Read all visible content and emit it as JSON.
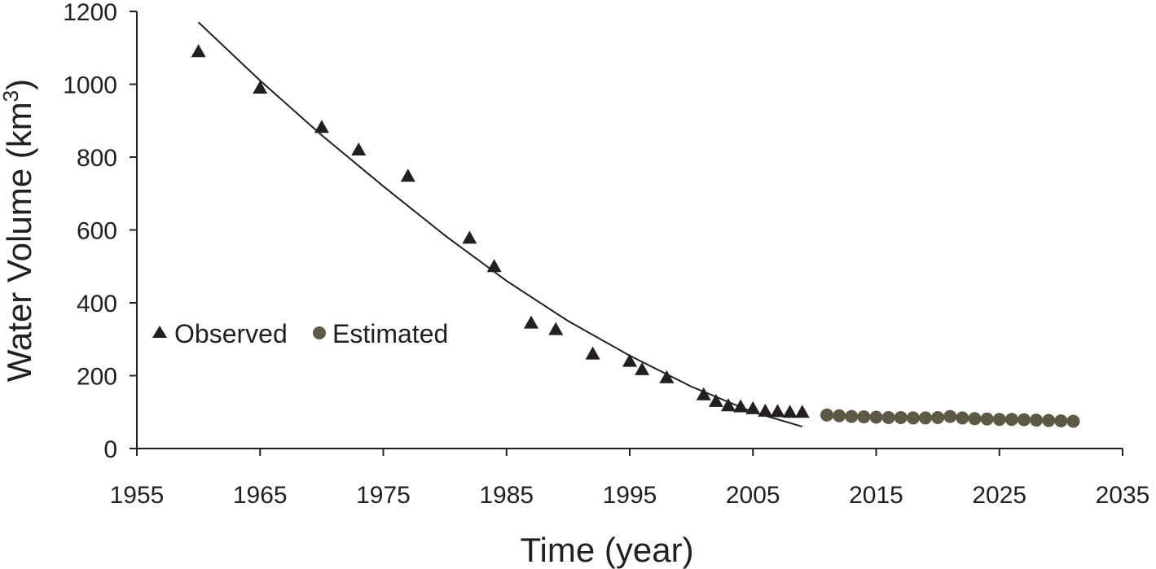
{
  "chart_data": {
    "type": "scatter",
    "xlabel": "Time (year)",
    "ylabel": "Water Volume (km",
    "ylabel_sup": "3",
    "ylabel_close": ")",
    "xlim": [
      1955,
      2035
    ],
    "ylim": [
      0,
      1200
    ],
    "x_ticks": [
      "1955",
      "1965",
      "1975",
      "1985",
      "1995",
      "2005",
      "2015",
      "2025",
      "2035"
    ],
    "y_ticks": [
      "0",
      "200",
      "400",
      "600",
      "800",
      "1000",
      "1200"
    ],
    "grid": false,
    "legend_position": "left",
    "series": [
      {
        "name": "Observed",
        "marker": "triangle",
        "color": "#231f20",
        "x": [
          1960,
          1965,
          1970,
          1973,
          1977,
          1982,
          1984,
          1987,
          1989,
          1992,
          1995,
          1996,
          1998,
          2001,
          2002,
          2003,
          2004,
          2005,
          2006,
          2007,
          2008,
          2009
        ],
        "y": [
          1090,
          990,
          882,
          820,
          748,
          578,
          500,
          345,
          327,
          260,
          240,
          217,
          195,
          148,
          130,
          118,
          115,
          110,
          103,
          102,
          100,
          100
        ]
      },
      {
        "name": "Estimated",
        "marker": "circle",
        "color": "#5c5a44",
        "x": [
          2011,
          2012,
          2013,
          2014,
          2015,
          2016,
          2017,
          2018,
          2019,
          2020,
          2021,
          2022,
          2023,
          2024,
          2025,
          2026,
          2027,
          2028,
          2029,
          2030,
          2031
        ],
        "y": [
          92,
          90,
          88,
          87,
          86,
          85,
          85,
          84,
          84,
          85,
          88,
          84,
          82,
          81,
          80,
          80,
          79,
          78,
          77,
          76,
          75
        ]
      }
    ],
    "trendlines": [
      {
        "x": [
          1960,
          1965,
          1970,
          1975,
          1980,
          1985,
          1990,
          1995,
          2000,
          2005,
          2009
        ],
        "y": [
          1170,
          1010,
          860,
          720,
          585,
          460,
          350,
          255,
          170,
          100,
          60
        ]
      },
      {
        "x": [
          2011,
          2021,
          2031
        ],
        "y": [
          88,
          83,
          78
        ]
      }
    ]
  }
}
